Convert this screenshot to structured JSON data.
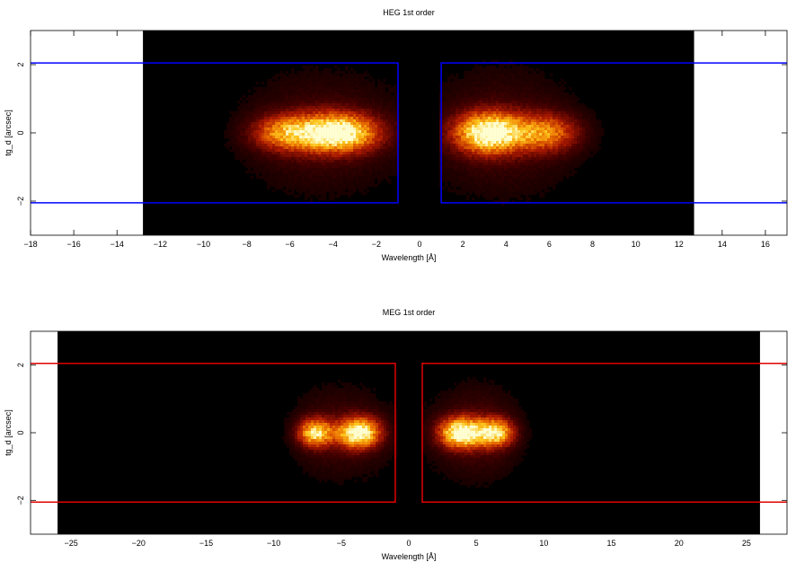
{
  "chart_data": [
    {
      "type": "heatmap",
      "title": "HEG 1st order",
      "xlabel": "Wavelength [Å]",
      "ylabel": "tg_d [arcsec]",
      "xlim": [
        -18,
        17
      ],
      "ylim": [
        -3,
        3
      ],
      "image_xrange": [
        -12.8,
        12.7
      ],
      "image_yrange": [
        -3,
        3
      ],
      "x_ticks": [
        -18,
        -16,
        -14,
        -12,
        -10,
        -8,
        -6,
        -4,
        -2,
        0,
        2,
        4,
        6,
        8,
        10,
        12,
        14,
        16
      ],
      "x_tick_labels": [
        "−18",
        "−16",
        "−14",
        "−12",
        "−10",
        "−8",
        "−6",
        "−4",
        "−2",
        "0",
        "2",
        "4",
        "6",
        "8",
        "10",
        "12",
        "14",
        "16"
      ],
      "y_ticks": [
        -2,
        0,
        2
      ],
      "y_tick_labels": [
        "−2",
        "0",
        "2"
      ],
      "regions_color": "#0000ff",
      "regions": [
        {
          "x": [
            -18,
            -1
          ],
          "y": [
            -2.05,
            2.05
          ],
          "closed_edge": "right"
        },
        {
          "x": [
            1,
            17
          ],
          "y": [
            -2.05,
            2.05
          ],
          "closed_edge": "left"
        }
      ],
      "emission": [
        {
          "center_x": -3.8,
          "center_y": 0,
          "width_x": 2.6,
          "width_y": 0.75,
          "peak": 1.0
        },
        {
          "center_x": -6.2,
          "center_y": 0,
          "width_x": 2.2,
          "width_y": 0.7,
          "peak": 0.55
        },
        {
          "center_x": 3.2,
          "center_y": 0,
          "width_x": 2.2,
          "width_y": 0.8,
          "peak": 1.0
        },
        {
          "center_x": 5.8,
          "center_y": 0,
          "width_x": 2.2,
          "width_y": 0.75,
          "peak": 0.55
        }
      ]
    },
    {
      "type": "heatmap",
      "title": "MEG 1st order",
      "xlabel": "Wavelength [Å]",
      "ylabel": "tg_d [arcsec]",
      "xlim": [
        -28,
        28
      ],
      "ylim": [
        -3,
        3
      ],
      "image_xrange": [
        -26,
        26
      ],
      "image_yrange": [
        -3,
        3
      ],
      "x_ticks": [
        -25,
        -20,
        -15,
        -10,
        -5,
        0,
        5,
        10,
        15,
        20,
        25
      ],
      "x_tick_labels": [
        "−25",
        "−20",
        "−15",
        "−10",
        "−5",
        "0",
        "5",
        "10",
        "15",
        "20",
        "25"
      ],
      "y_ticks": [
        -2,
        0,
        2
      ],
      "y_tick_labels": [
        "−2",
        "0",
        "2"
      ],
      "regions_color": "#e00000",
      "regions": [
        {
          "x": [
            -28,
            -1
          ],
          "y": [
            -2.05,
            2.05
          ],
          "closed_edge": "right"
        },
        {
          "x": [
            1,
            28
          ],
          "y": [
            -2.05,
            2.05
          ],
          "closed_edge": "left"
        }
      ],
      "emission": [
        {
          "center_x": -3.7,
          "center_y": 0,
          "width_x": 2.2,
          "width_y": 0.6,
          "peak": 1.0
        },
        {
          "center_x": -6.9,
          "center_y": 0,
          "width_x": 1.8,
          "width_y": 0.55,
          "peak": 0.8
        },
        {
          "center_x": 3.9,
          "center_y": 0,
          "width_x": 2.3,
          "width_y": 0.6,
          "peak": 1.0
        },
        {
          "center_x": 6.4,
          "center_y": 0,
          "width_x": 1.9,
          "width_y": 0.55,
          "peak": 0.8
        }
      ]
    }
  ]
}
